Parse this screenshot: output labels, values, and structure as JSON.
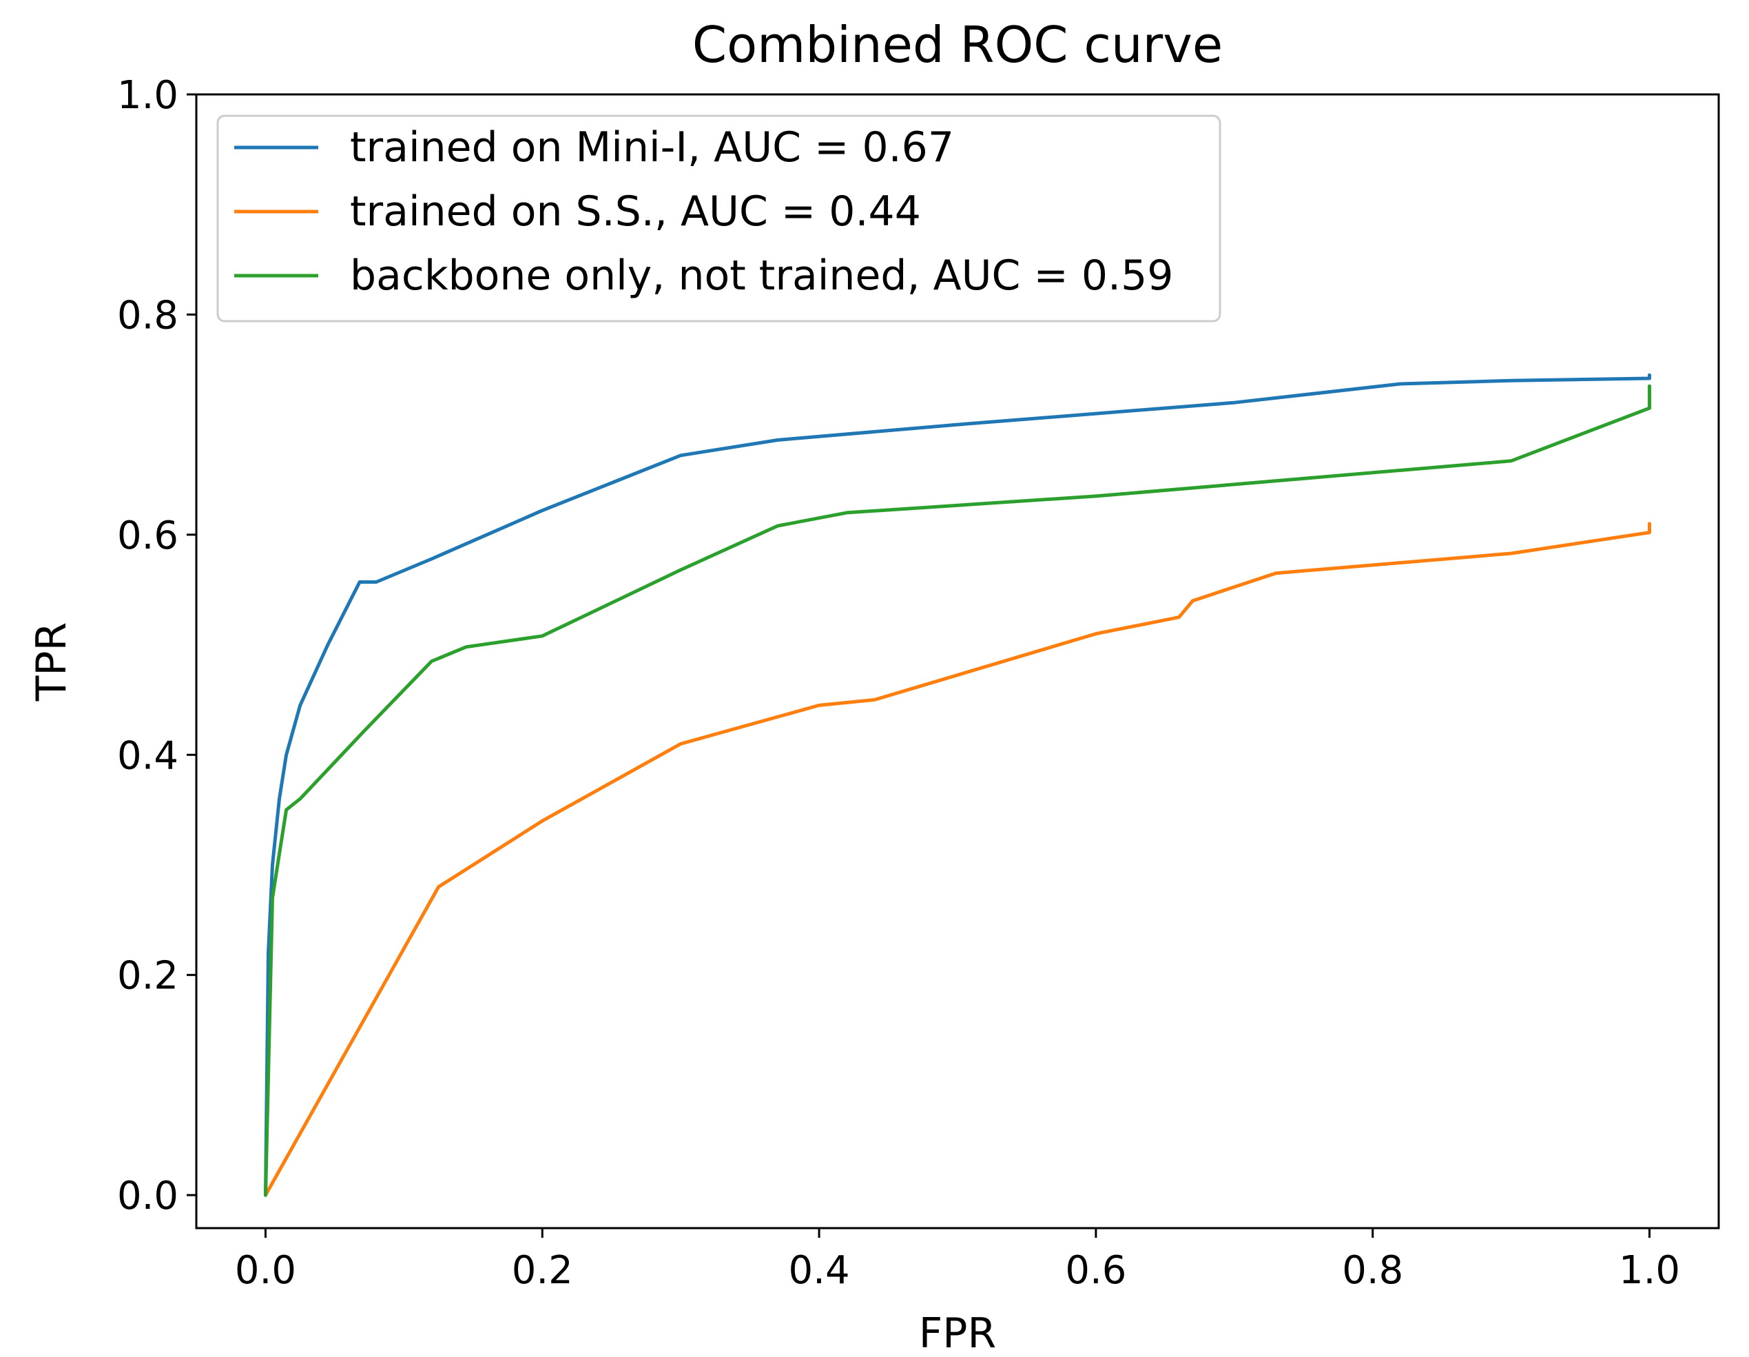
{
  "chart_data": {
    "type": "line",
    "title": "Combined ROC curve",
    "xlabel": "FPR",
    "ylabel": "TPR",
    "xlim": [
      -0.05,
      1.05
    ],
    "ylim": [
      -0.03,
      1.0
    ],
    "xticks": [
      {
        "value": 0.0,
        "label": "0.0"
      },
      {
        "value": 0.2,
        "label": "0.2"
      },
      {
        "value": 0.4,
        "label": "0.4"
      },
      {
        "value": 0.6,
        "label": "0.6"
      },
      {
        "value": 0.8,
        "label": "0.8"
      },
      {
        "value": 1.0,
        "label": "1.0"
      }
    ],
    "yticks": [
      {
        "value": 0.0,
        "label": "0.0"
      },
      {
        "value": 0.2,
        "label": "0.2"
      },
      {
        "value": 0.4,
        "label": "0.4"
      },
      {
        "value": 0.6,
        "label": "0.6"
      },
      {
        "value": 0.8,
        "label": "0.8"
      },
      {
        "value": 1.0,
        "label": "1.0"
      }
    ],
    "legend_position": "upper-left",
    "series": [
      {
        "name": "trained on Mini-I, AUC = 0.67",
        "color": "#1f77b4",
        "x": [
          0.0,
          0.002,
          0.005,
          0.01,
          0.015,
          0.025,
          0.045,
          0.068,
          0.08,
          0.12,
          0.2,
          0.3,
          0.37,
          0.5,
          0.7,
          0.82,
          0.9,
          1.0,
          1.0
        ],
        "y": [
          0.0,
          0.22,
          0.3,
          0.36,
          0.4,
          0.445,
          0.5,
          0.557,
          0.557,
          0.578,
          0.622,
          0.672,
          0.686,
          0.7,
          0.72,
          0.737,
          0.74,
          0.742,
          0.745
        ]
      },
      {
        "name": "trained on S.S., AUC = 0.44",
        "color": "#ff7f0e",
        "x": [
          0.0,
          0.125,
          0.2,
          0.3,
          0.4,
          0.44,
          0.6,
          0.66,
          0.67,
          0.73,
          0.9,
          1.0,
          1.0
        ],
        "y": [
          0.0,
          0.28,
          0.34,
          0.41,
          0.445,
          0.45,
          0.51,
          0.525,
          0.54,
          0.565,
          0.583,
          0.602,
          0.61
        ]
      },
      {
        "name": "backbone only, not trained, AUC = 0.59",
        "color": "#2ca02c",
        "x": [
          0.0,
          0.005,
          0.01,
          0.015,
          0.025,
          0.07,
          0.12,
          0.145,
          0.2,
          0.3,
          0.37,
          0.42,
          0.6,
          0.9,
          1.0,
          1.0
        ],
        "y": [
          0.0,
          0.27,
          0.31,
          0.35,
          0.36,
          0.42,
          0.485,
          0.498,
          0.508,
          0.568,
          0.608,
          0.62,
          0.635,
          0.667,
          0.715,
          0.735
        ]
      }
    ]
  }
}
